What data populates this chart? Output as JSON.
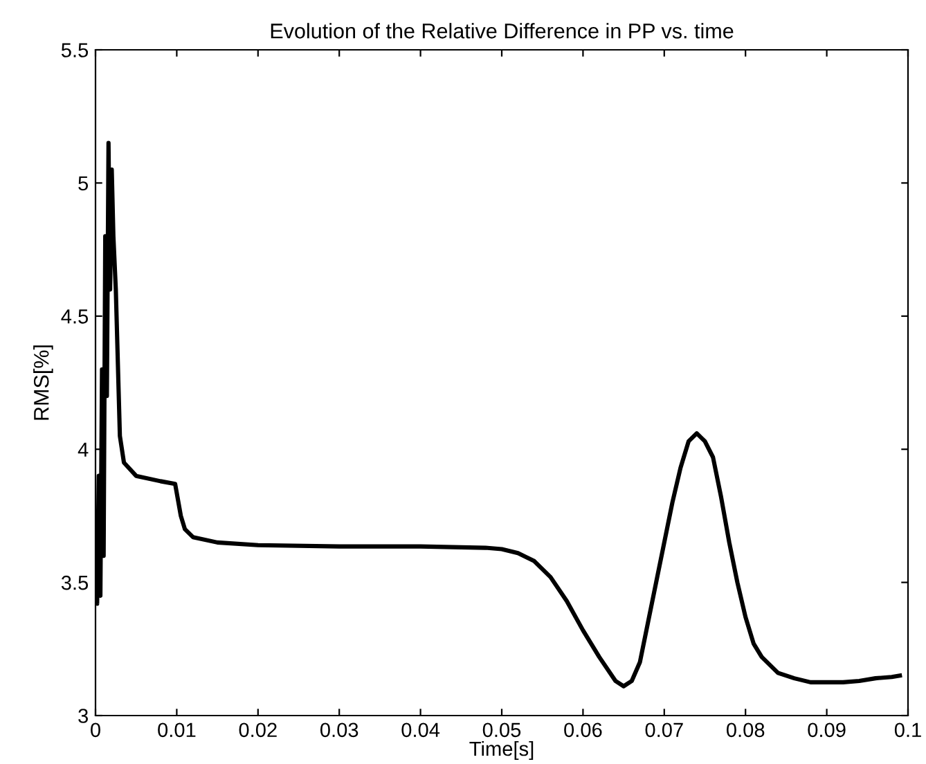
{
  "chart_data": {
    "type": "line",
    "title": "Evolution of the Relative Difference in PP vs. time",
    "xlabel": "Time[s]",
    "ylabel": "RMS[%]",
    "xlim": [
      0,
      0.1
    ],
    "ylim": [
      3,
      5.5
    ],
    "xticks": [
      0,
      0.01,
      0.02,
      0.03,
      0.04,
      0.05,
      0.06,
      0.07,
      0.08,
      0.09,
      0.1
    ],
    "yticks": [
      3,
      3.5,
      4,
      4.5,
      5,
      5.5
    ],
    "grid": false,
    "marker": "none",
    "line_style": "solid",
    "series": [
      {
        "color": "#000000",
        "x": [
          0,
          0.0002,
          0.0004,
          0.0006,
          0.0008,
          0.001,
          0.0012,
          0.0014,
          0.0016,
          0.0018,
          0.002,
          0.0022,
          0.0025,
          0.003,
          0.0035,
          0.005,
          0.008,
          0.0098,
          0.0105,
          0.011,
          0.012,
          0.015,
          0.02,
          0.03,
          0.04,
          0.048,
          0.05,
          0.052,
          0.054,
          0.056,
          0.058,
          0.06,
          0.062,
          0.064,
          0.065,
          0.066,
          0.067,
          0.068,
          0.069,
          0.07,
          0.071,
          0.072,
          0.073,
          0.074,
          0.075,
          0.076,
          0.077,
          0.078,
          0.079,
          0.08,
          0.081,
          0.082,
          0.083,
          0.084,
          0.086,
          0.088,
          0.09,
          0.092,
          0.094,
          0.096,
          0.098,
          0.099
        ],
        "values": [
          3.7,
          3.42,
          3.9,
          3.45,
          4.3,
          3.6,
          4.8,
          4.2,
          5.15,
          4.6,
          5.05,
          4.8,
          4.6,
          4.05,
          3.95,
          3.9,
          3.88,
          3.87,
          3.75,
          3.7,
          3.67,
          3.65,
          3.64,
          3.635,
          3.635,
          3.63,
          3.625,
          3.61,
          3.58,
          3.52,
          3.43,
          3.32,
          3.22,
          3.13,
          3.11,
          3.13,
          3.2,
          3.35,
          3.5,
          3.65,
          3.8,
          3.93,
          4.03,
          4.06,
          4.03,
          3.97,
          3.82,
          3.65,
          3.5,
          3.37,
          3.27,
          3.22,
          3.19,
          3.16,
          3.14,
          3.125,
          3.125,
          3.125,
          3.13,
          3.14,
          3.145,
          3.15
        ]
      }
    ]
  }
}
